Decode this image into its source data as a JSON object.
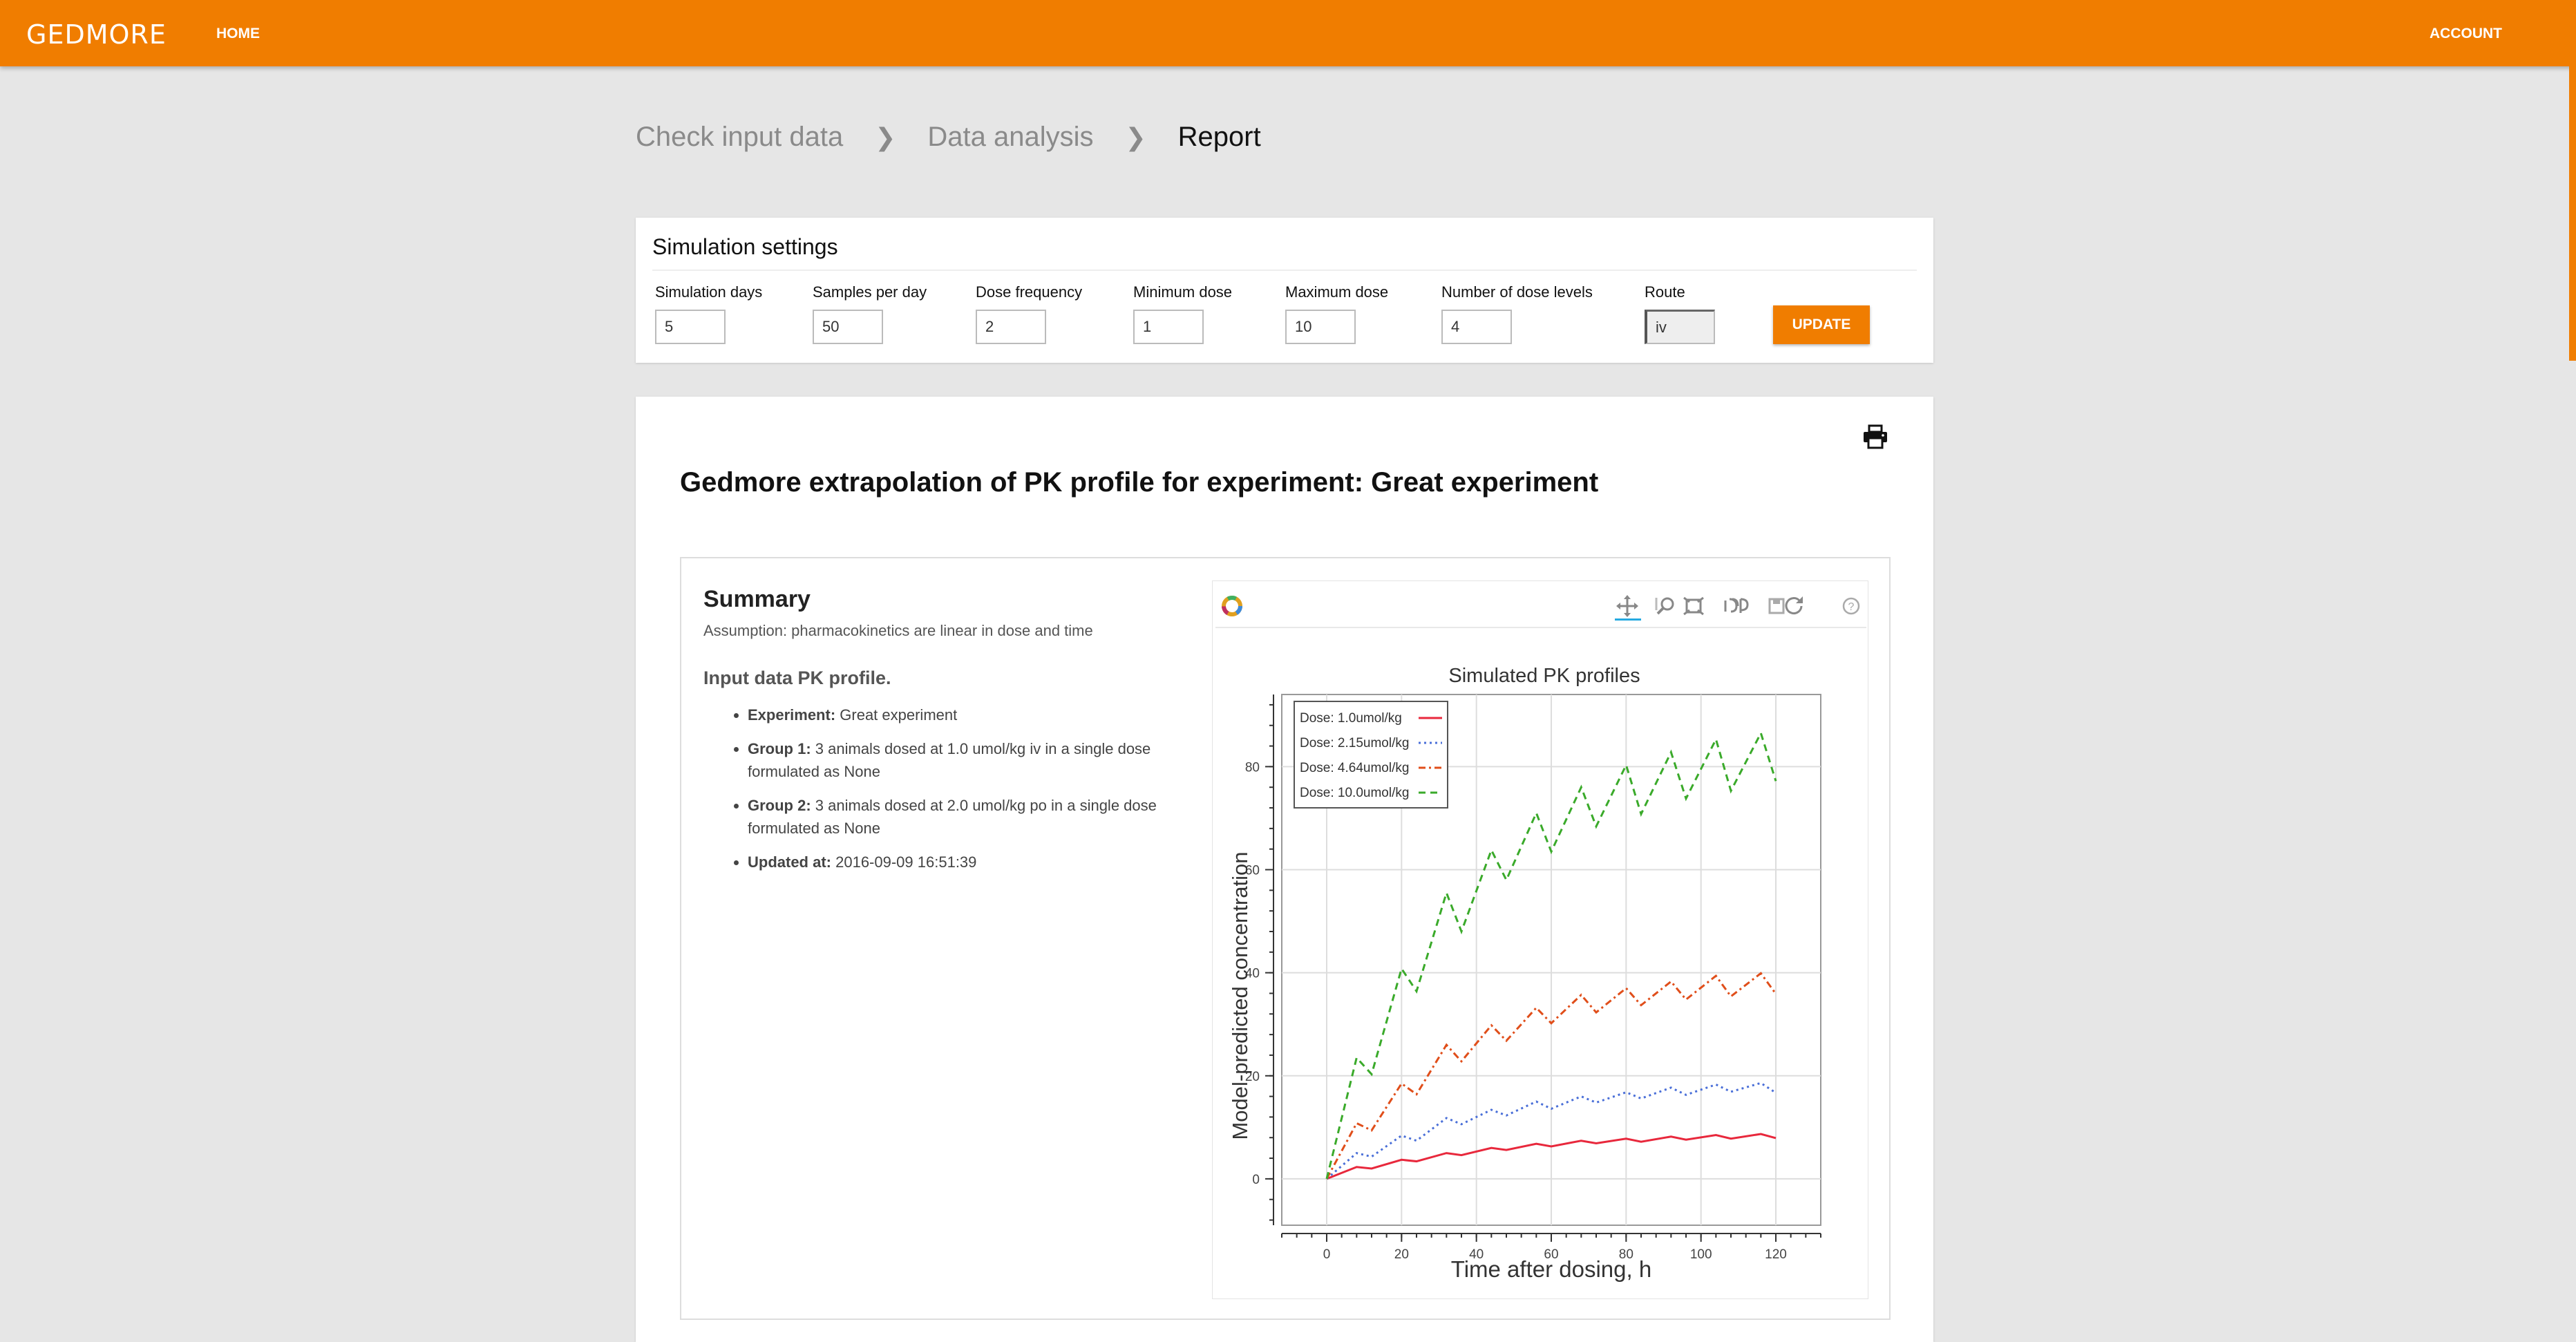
{
  "header": {
    "logo": "GEDMORE",
    "home": "HOME",
    "account": "ACCOUNT"
  },
  "breadcrumbs": [
    "Check input data",
    "Data analysis",
    "Report"
  ],
  "settings": {
    "title": "Simulation settings",
    "fields": [
      {
        "label": "Simulation days",
        "value": "5"
      },
      {
        "label": "Samples per day",
        "value": "50"
      },
      {
        "label": "Dose frequency",
        "value": "2"
      },
      {
        "label": "Minimum dose",
        "value": "1"
      },
      {
        "label": "Maximum dose",
        "value": "10"
      },
      {
        "label": "Number of dose levels",
        "value": "4"
      },
      {
        "label": "Route",
        "value": "iv"
      }
    ],
    "update_label": "UPDATE"
  },
  "report": {
    "title": "Gedmore extrapolation of PK profile for experiment: Great experiment",
    "summary_title": "Summary",
    "assumption": "Assumption: pharmacokinetics are linear in dose and time",
    "subheading": "Input data PK profile.",
    "items": [
      {
        "key": "Experiment:",
        "text": " Great experiment"
      },
      {
        "key": "Group 1:",
        "text": " 3 animals dosed at 1.0 umol/kg iv in a single dose formulated as None"
      },
      {
        "key": "Group 2:",
        "text": " 3 animals dosed at 2.0 umol/kg po in a single dose formulated as None"
      },
      {
        "key": "Updated at:",
        "text": " 2016-09-09 16:51:39"
      }
    ]
  },
  "chart_data": {
    "type": "line",
    "title": "Simulated PK profiles",
    "xlabel": "Time after dosing, h",
    "ylabel": "Model-predicted concentration",
    "xlim": [
      -12,
      132
    ],
    "ylim": [
      -9,
      94
    ],
    "xticks": [
      0,
      20,
      40,
      60,
      80,
      100,
      120
    ],
    "yticks": [
      0,
      20,
      40,
      60,
      80
    ],
    "legend_position": "top-left",
    "grid": true,
    "x": [
      0,
      8,
      12,
      20,
      24,
      32,
      36,
      44,
      48,
      56,
      60,
      68,
      72,
      80,
      84,
      92,
      96,
      104,
      108,
      116,
      120
    ],
    "series": [
      {
        "name": "Dose: 1.0umol/kg",
        "color": "#e8283c",
        "dash": "",
        "values": [
          0,
          2.3,
          2.0,
          3.7,
          3.4,
          5.0,
          4.6,
          6.0,
          5.6,
          6.8,
          6.3,
          7.4,
          6.9,
          7.8,
          7.2,
          8.2,
          7.6,
          8.5,
          7.8,
          8.7,
          7.9
        ]
      },
      {
        "name": "Dose: 2.15umol/kg",
        "color": "#4a6fd8",
        "dash": "3,5",
        "values": [
          0,
          5.0,
          4.3,
          8.4,
          7.4,
          11.8,
          10.6,
          13.4,
          12.3,
          15.0,
          13.6,
          16.0,
          14.8,
          16.8,
          15.6,
          17.7,
          16.3,
          18.3,
          16.9,
          18.6,
          16.7
        ]
      },
      {
        "name": "Dose: 4.64umol/kg",
        "color": "#e04e1a",
        "dash": "10,5,3,5",
        "values": [
          0,
          10.8,
          9.4,
          18.5,
          16.4,
          26.0,
          22.8,
          29.8,
          26.8,
          33.2,
          30.2,
          35.7,
          32.3,
          37.0,
          33.7,
          38.3,
          34.8,
          39.4,
          35.4,
          39.9,
          35.9
        ]
      },
      {
        "name": "Dose: 10.0umol/kg",
        "color": "#3aaa2a",
        "dash": "10,7",
        "values": [
          0,
          23.5,
          20.3,
          40.8,
          36.4,
          55.5,
          48.0,
          63.8,
          58.0,
          71.0,
          63.5,
          76.0,
          68.4,
          80.3,
          70.8,
          82.8,
          73.8,
          85.3,
          75.3,
          86.5,
          77.2
        ]
      }
    ]
  }
}
